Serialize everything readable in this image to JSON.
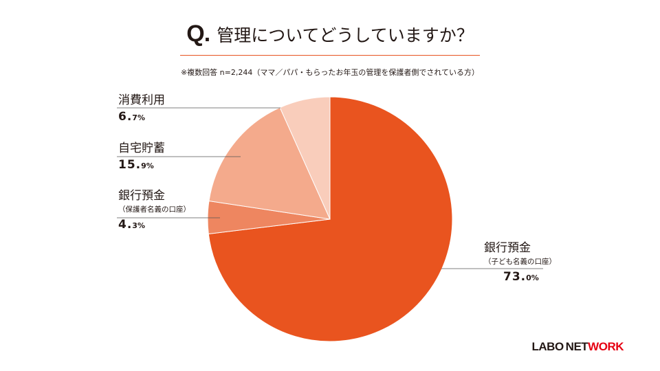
{
  "header": {
    "q": "Q.",
    "question": "管理についてどうしていますか？",
    "note": "※複数回答 n=2,244（ママ／パパ・もらったお年玉の管理を保護者側でされている方）"
  },
  "chart_data": {
    "type": "pie",
    "start": "12 o'clock",
    "direction": "clockwise",
    "slices": [
      {
        "label": "銀行預金",
        "sublabel": "（子ども名義の口座）",
        "value": 73.0,
        "value_int": "73.",
        "value_dec": "0%",
        "color": "#e9541f"
      },
      {
        "label": "銀行預金",
        "sublabel": "（保護者名義の口座）",
        "value": 4.3,
        "value_int": "4.",
        "value_dec": "3%",
        "color": "#ee8660"
      },
      {
        "label": "自宅貯蓄",
        "sublabel": "",
        "value": 15.9,
        "value_int": "15.",
        "value_dec": "9%",
        "color": "#f4aa8c"
      },
      {
        "label": "消費利用",
        "sublabel": "",
        "value": 6.7,
        "value_int": "6.",
        "value_dec": "7%",
        "color": "#f9cdbb"
      }
    ]
  },
  "logo": {
    "part1": "LABO",
    "part2": "NET",
    "part3": "WORK"
  }
}
